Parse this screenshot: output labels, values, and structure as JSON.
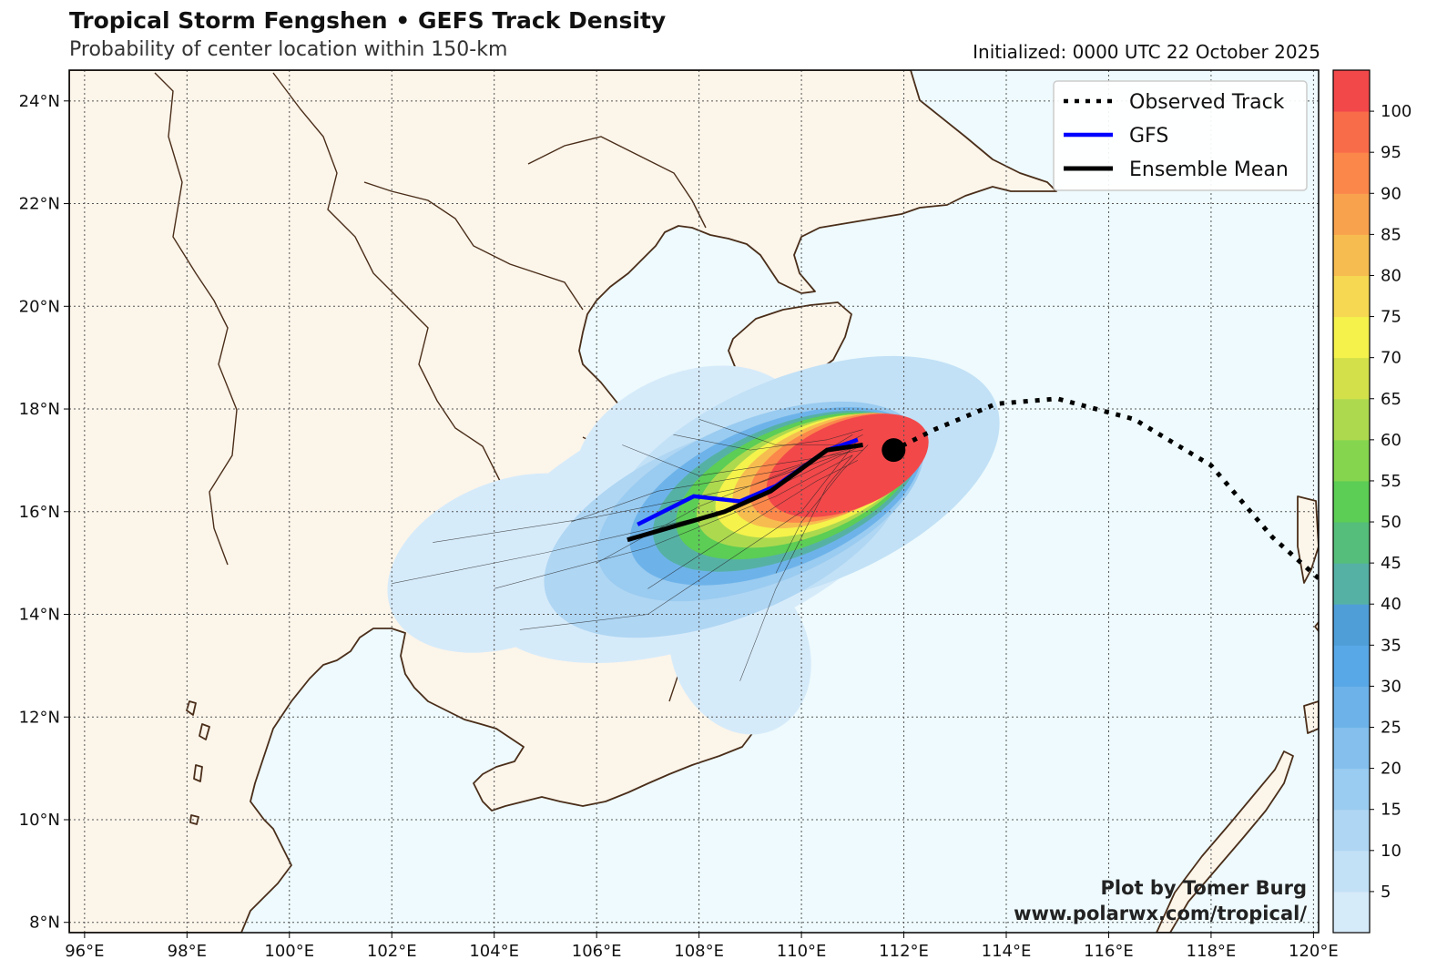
{
  "header": {
    "title": "Tropical Storm Fengshen • GEFS Track Density",
    "subtitle": "Probability of center location within 150-km",
    "initialized": "Initialized: 0000 UTC 22 October 2025"
  },
  "map": {
    "lon_range": [
      95.7,
      120.1
    ],
    "lat_range": [
      7.8,
      24.6
    ],
    "lon_ticks": [
      "96°E",
      "98°E",
      "100°E",
      "102°E",
      "104°E",
      "106°E",
      "108°E",
      "110°E",
      "112°E",
      "114°E",
      "116°E",
      "118°E",
      "120°E"
    ],
    "lat_ticks": [
      "8°N",
      "10°N",
      "12°N",
      "14°N",
      "16°N",
      "18°N",
      "20°N",
      "22°N",
      "24°N"
    ],
    "colors": {
      "ocean": "#eefafd",
      "land": "#fcf5ea",
      "coast": "#4a2e1a",
      "grid": "#555555"
    }
  },
  "legend": {
    "items": [
      {
        "label": "Observed Track",
        "style": "dotted",
        "color": "#000000"
      },
      {
        "label": "GFS",
        "style": "solid",
        "color": "#0000ff"
      },
      {
        "label": "Ensemble Mean",
        "style": "solid",
        "color": "#000000"
      }
    ]
  },
  "tracks": {
    "observed": [
      [
        120.1,
        14.7
      ],
      [
        119.2,
        15.5
      ],
      [
        118.0,
        16.9
      ],
      [
        116.5,
        17.8
      ],
      [
        115.0,
        18.2
      ],
      [
        113.8,
        18.1
      ],
      [
        112.6,
        17.6
      ],
      [
        111.8,
        17.2
      ]
    ],
    "gfs": [
      [
        106.8,
        15.75
      ],
      [
        107.9,
        16.3
      ],
      [
        108.8,
        16.2
      ],
      [
        109.5,
        16.5
      ],
      [
        110.5,
        17.2
      ],
      [
        111.1,
        17.4
      ]
    ],
    "ensemble_mean": [
      [
        106.6,
        15.45
      ],
      [
        108.5,
        16.0
      ],
      [
        109.4,
        16.4
      ],
      [
        110.5,
        17.2
      ],
      [
        111.2,
        17.3
      ]
    ],
    "current_position": [
      111.8,
      17.2
    ]
  },
  "colorbar": {
    "ticks": [
      "5",
      "10",
      "15",
      "20",
      "25",
      "30",
      "35",
      "40",
      "45",
      "50",
      "55",
      "60",
      "65",
      "70",
      "75",
      "80",
      "85",
      "90",
      "95",
      "100"
    ],
    "colors": [
      "#d6ebfa",
      "#c2e1f6",
      "#afd6f3",
      "#9acbf0",
      "#84bfed",
      "#6db3ea",
      "#58a7e6",
      "#4f9ed8",
      "#56b1a5",
      "#55be7a",
      "#5ccd55",
      "#85d54f",
      "#add94f",
      "#d3e04a",
      "#f4f24b",
      "#f6d852",
      "#f7bc50",
      "#f9a24e",
      "#fb874b",
      "#f96c4a",
      "#f2484a"
    ]
  },
  "credit": {
    "line1": "Plot by Tomer Burg",
    "line2": "www.polarwx.com/tropical/"
  }
}
